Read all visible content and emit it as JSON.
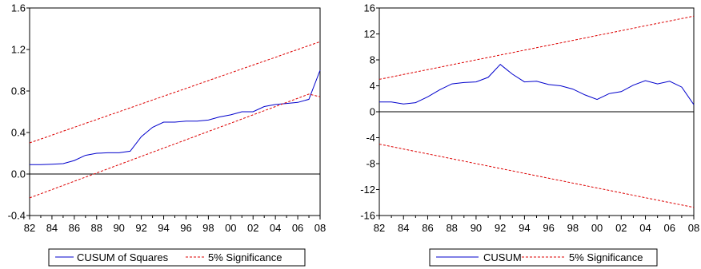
{
  "chart_data": [
    {
      "type": "line",
      "x": [
        1982,
        1983,
        1984,
        1985,
        1986,
        1987,
        1988,
        1989,
        1990,
        1991,
        1992,
        1993,
        1994,
        1995,
        1996,
        1997,
        1998,
        1999,
        2000,
        2001,
        2002,
        2003,
        2004,
        2005,
        2006,
        2007,
        2008
      ],
      "xlim": [
        1982,
        2008
      ],
      "xtick_values": [
        1982,
        1984,
        1986,
        1988,
        1990,
        1992,
        1994,
        1996,
        1998,
        2000,
        2002,
        2004,
        2006,
        2008
      ],
      "xtick_labels": [
        "82",
        "84",
        "86",
        "88",
        "90",
        "92",
        "94",
        "96",
        "98",
        "00",
        "02",
        "04",
        "06",
        "08"
      ],
      "ylim": [
        -0.4,
        1.6
      ],
      "ytick_values": [
        -0.4,
        0.0,
        0.4,
        0.8,
        1.2,
        1.6
      ],
      "ytick_labels": [
        "-0.4",
        "0.0",
        "0.4",
        "0.8",
        "1.2",
        "1.6"
      ],
      "zero_line": true,
      "grid": false,
      "legend_position": "bottom",
      "series": [
        {
          "name": "CUSUM of Squares",
          "color": "#0000cc",
          "style": "solid",
          "values": [
            0.09,
            0.09,
            0.095,
            0.1,
            0.13,
            0.18,
            0.2,
            0.205,
            0.205,
            0.22,
            0.36,
            0.45,
            0.5,
            0.5,
            0.51,
            0.51,
            0.52,
            0.55,
            0.57,
            0.6,
            0.6,
            0.65,
            0.67,
            0.68,
            0.69,
            0.72,
            1.0
          ]
        },
        {
          "name": "5% Significance",
          "color": "#dd0000",
          "style": "dashed",
          "values": [
            0.3,
            0.337,
            0.375,
            0.413,
            0.45,
            0.488,
            0.525,
            0.563,
            0.6,
            0.638,
            0.675,
            0.713,
            0.75,
            0.788,
            0.825,
            0.863,
            0.9,
            0.938,
            0.975,
            1.013,
            1.05,
            1.088,
            1.125,
            1.163,
            1.2,
            1.238,
            1.275
          ]
        },
        {
          "name": "",
          "color": "#dd0000",
          "style": "dashed",
          "values": [
            -0.23,
            -0.19,
            -0.15,
            -0.11,
            -0.07,
            -0.03,
            0.01,
            0.05,
            0.09,
            0.13,
            0.17,
            0.21,
            0.25,
            0.29,
            0.33,
            0.37,
            0.41,
            0.45,
            0.49,
            0.53,
            0.57,
            0.61,
            0.65,
            0.69,
            0.73,
            0.77,
            0.745
          ]
        }
      ]
    },
    {
      "type": "line",
      "x": [
        1982,
        1983,
        1984,
        1985,
        1986,
        1987,
        1988,
        1989,
        1990,
        1991,
        1992,
        1993,
        1994,
        1995,
        1996,
        1997,
        1998,
        1999,
        2000,
        2001,
        2002,
        2003,
        2004,
        2005,
        2006,
        2007,
        2008
      ],
      "xlim": [
        1982,
        2008
      ],
      "xtick_values": [
        1982,
        1984,
        1986,
        1988,
        1990,
        1992,
        1994,
        1996,
        1998,
        2000,
        2002,
        2004,
        2006,
        2008
      ],
      "xtick_labels": [
        "82",
        "84",
        "86",
        "88",
        "90",
        "92",
        "94",
        "96",
        "98",
        "00",
        "02",
        "04",
        "06",
        "08"
      ],
      "ylim": [
        -16,
        16
      ],
      "ytick_values": [
        -16,
        -12,
        -8,
        -4,
        0,
        4,
        8,
        12,
        16
      ],
      "ytick_labels": [
        "-16",
        "-12",
        "-8",
        "-4",
        "0",
        "4",
        "8",
        "12",
        "16"
      ],
      "zero_line": true,
      "grid": false,
      "legend_position": "bottom",
      "series": [
        {
          "name": "CUSUM",
          "color": "#0000cc",
          "style": "solid",
          "values": [
            1.5,
            1.5,
            1.2,
            1.4,
            2.3,
            3.4,
            4.3,
            4.5,
            4.6,
            5.3,
            7.3,
            5.8,
            4.6,
            4.7,
            4.2,
            4.0,
            3.5,
            2.6,
            1.9,
            2.8,
            3.1,
            4.1,
            4.8,
            4.3,
            4.7,
            3.8,
            1.1
          ]
        },
        {
          "name": "5% Significance",
          "color": "#dd0000",
          "style": "dashed",
          "values": [
            5.0,
            5.37,
            5.75,
            6.12,
            6.5,
            6.87,
            7.25,
            7.62,
            8.0,
            8.37,
            8.75,
            9.12,
            9.5,
            9.87,
            10.25,
            10.62,
            11.0,
            11.37,
            11.75,
            12.12,
            12.5,
            12.87,
            13.25,
            13.62,
            14.0,
            14.37,
            14.75
          ]
        },
        {
          "name": "",
          "color": "#dd0000",
          "style": "dashed",
          "values": [
            -5.0,
            -5.37,
            -5.75,
            -6.12,
            -6.5,
            -6.87,
            -7.25,
            -7.62,
            -8.0,
            -8.37,
            -8.75,
            -9.12,
            -9.5,
            -9.87,
            -10.25,
            -10.62,
            -11.0,
            -11.37,
            -11.75,
            -12.12,
            -12.5,
            -12.87,
            -13.25,
            -13.62,
            -14.0,
            -14.37,
            -14.75
          ]
        }
      ]
    }
  ]
}
